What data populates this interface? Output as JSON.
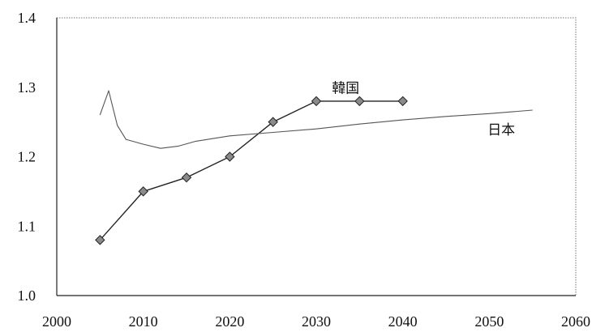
{
  "chart_data": {
    "type": "line",
    "title": "",
    "xlabel": "",
    "ylabel": "",
    "xlim": [
      2000,
      2060
    ],
    "ylim": [
      1.0,
      1.4
    ],
    "x_ticks": [
      "2000",
      "2010",
      "2020",
      "2030",
      "2040",
      "2050",
      "2060"
    ],
    "y_ticks": [
      "1.0",
      "1.1",
      "1.2",
      "1.3",
      "1.4"
    ],
    "grid": false,
    "legend": "none",
    "series": [
      {
        "name": "韓国",
        "color": "#222222",
        "marker": "diamond",
        "marker_color": "#8a8a8a",
        "x": [
          2005,
          2010,
          2015,
          2020,
          2025,
          2030,
          2035,
          2040
        ],
        "y": [
          1.08,
          1.15,
          1.17,
          1.2,
          1.25,
          1.28,
          1.28,
          1.28
        ]
      },
      {
        "name": "日本",
        "color": "#555555",
        "marker": "none",
        "x": [
          2005,
          2006,
          2007,
          2008,
          2010,
          2012,
          2014,
          2016,
          2020,
          2025,
          2030,
          2035,
          2040,
          2045,
          2050,
          2055
        ],
        "y": [
          1.26,
          1.295,
          1.245,
          1.225,
          1.218,
          1.212,
          1.215,
          1.222,
          1.23,
          1.235,
          1.24,
          1.247,
          1.253,
          1.258,
          1.262,
          1.267
        ]
      }
    ]
  }
}
